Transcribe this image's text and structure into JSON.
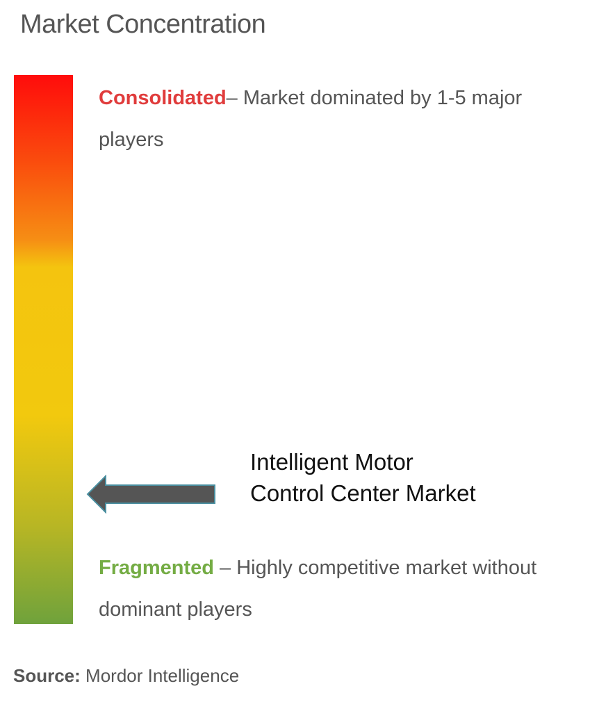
{
  "title": "Market Concentration",
  "chart_data": {
    "type": "concentration_scale",
    "scale_top": {
      "label": "Consolidated",
      "description": "– Market dominated by 1-5 major players",
      "color": "#e03c3c"
    },
    "scale_bottom": {
      "label": "Fragmented",
      "description": " – Highly competitive market without dominant players",
      "color": "#74ac44"
    },
    "marker": {
      "label_line1": "Intelligent Motor",
      "label_line2": "Control Center Market",
      "position_fraction_from_top": 0.76
    },
    "gradient_colors": [
      "#ff0c0c",
      "#f68e14",
      "#f2c90e",
      "#6fa23c"
    ]
  },
  "source": {
    "prefix": "Source:",
    "text": " Mordor Intelligence"
  }
}
